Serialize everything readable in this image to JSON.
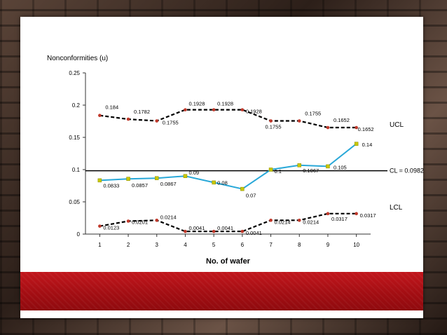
{
  "chart_data": {
    "type": "line",
    "title": "",
    "ylabel": "Nonconformities (u)",
    "xlabel": "No. of wafer",
    "x": [
      1,
      2,
      3,
      4,
      5,
      6,
      7,
      8,
      9,
      10
    ],
    "xticks": [
      "1",
      "2",
      "3",
      "4",
      "5",
      "6",
      "7",
      "8",
      "9",
      "10"
    ],
    "ylim": [
      0,
      0.25
    ],
    "yticks": [
      "0",
      "0.05",
      "0.1",
      "0.15",
      "0.2",
      "0.25"
    ],
    "grid": false,
    "series": [
      {
        "name": "UCL",
        "style": "dashed",
        "color": "#000000",
        "marker_color": "#c0392b",
        "values": [
          0.184,
          0.1782,
          0.1755,
          0.1928,
          0.1928,
          0.1928,
          0.1755,
          0.1755,
          0.1652,
          0.1652
        ],
        "labels": [
          "0.184",
          "0.1782",
          "0.1755",
          "0.1928",
          "0.1928",
          "0.1928",
          "0.1755",
          "0.1755",
          "0.1652",
          "0.1652"
        ]
      },
      {
        "name": "",
        "style": "solid",
        "color": "#29a8d8",
        "marker_color": "#c8c800",
        "values": [
          0.0833,
          0.0857,
          0.0867,
          0.09,
          0.08,
          0.07,
          0.1,
          0.1067,
          0.105,
          0.14
        ],
        "labels": [
          "0.0833",
          "0.0857",
          "0.0867",
          "0.09",
          "0.08",
          "0.07",
          "0.1",
          "0.1067",
          "0.105",
          "0.14"
        ]
      },
      {
        "name": "LCL",
        "style": "dashed",
        "color": "#000000",
        "marker_color": "#c0392b",
        "values": [
          0.0123,
          0.0201,
          0.0214,
          0.0041,
          0.0041,
          0.0041,
          0.0214,
          0.0214,
          0.0317,
          0.0317
        ],
        "labels": [
          "0.0123",
          "0.0201",
          "0.0214",
          "0.0041",
          "0.0041",
          "0.0041",
          "0.0214",
          "0.0214",
          "0.0317",
          "0.0317"
        ]
      }
    ],
    "center_line": {
      "value": 0.0982,
      "label": "CL = 0.0982"
    },
    "series_labels": {
      "ucl": "UCL",
      "lcl": "LCL"
    }
  }
}
